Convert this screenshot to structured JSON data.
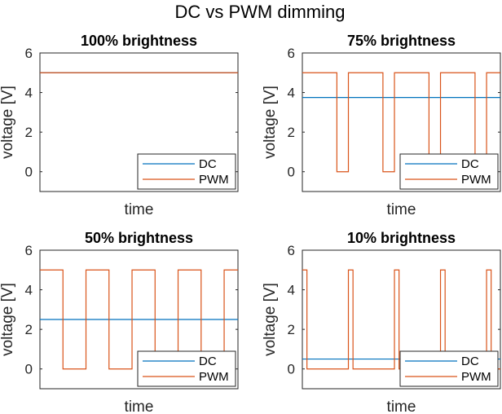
{
  "figure_title": "DC vs PWM dimming",
  "colors": {
    "dc": "#0072BD",
    "pwm": "#D95319",
    "axes": "#262626"
  },
  "chart_data": [
    {
      "type": "line",
      "title": "100% brightness",
      "xlabel": "time",
      "ylabel": "voltage [V]",
      "xticks": "none",
      "ylim": [
        -1,
        6
      ],
      "yticks": [
        "0",
        "2",
        "4",
        "6"
      ],
      "legend": "bottom-right",
      "series": [
        {
          "name": "DC",
          "y_constant": 5
        },
        {
          "name": "PWM",
          "pulse_high": 5,
          "pulse_low": 0,
          "duty": 1.0,
          "periods": 4.3
        }
      ]
    },
    {
      "type": "line",
      "title": "75% brightness",
      "xlabel": "time",
      "ylabel": "voltage [V]",
      "xticks": "none",
      "ylim": [
        -1,
        6
      ],
      "yticks": [
        "0",
        "2",
        "4",
        "6"
      ],
      "legend": "bottom-right",
      "series": [
        {
          "name": "DC",
          "y_constant": 3.75
        },
        {
          "name": "PWM",
          "pulse_high": 5,
          "pulse_low": 0,
          "duty": 0.75,
          "periods": 4.3
        }
      ]
    },
    {
      "type": "line",
      "title": "50% brightness",
      "xlabel": "time",
      "ylabel": "voltage [V]",
      "xticks": "none",
      "ylim": [
        -1,
        6
      ],
      "yticks": [
        "0",
        "2",
        "4",
        "6"
      ],
      "legend": "bottom-right",
      "series": [
        {
          "name": "DC",
          "y_constant": 2.5
        },
        {
          "name": "PWM",
          "pulse_high": 5,
          "pulse_low": 0,
          "duty": 0.5,
          "periods": 4.3
        }
      ]
    },
    {
      "type": "line",
      "title": "10% brightness",
      "xlabel": "time",
      "ylabel": "voltage [V]",
      "xticks": "none",
      "ylim": [
        -1,
        6
      ],
      "yticks": [
        "0",
        "2",
        "4",
        "6"
      ],
      "legend": "bottom-right",
      "series": [
        {
          "name": "DC",
          "y_constant": 0.5
        },
        {
          "name": "PWM",
          "pulse_high": 5,
          "pulse_low": 0,
          "duty": 0.1,
          "periods": 4.3
        }
      ]
    }
  ]
}
